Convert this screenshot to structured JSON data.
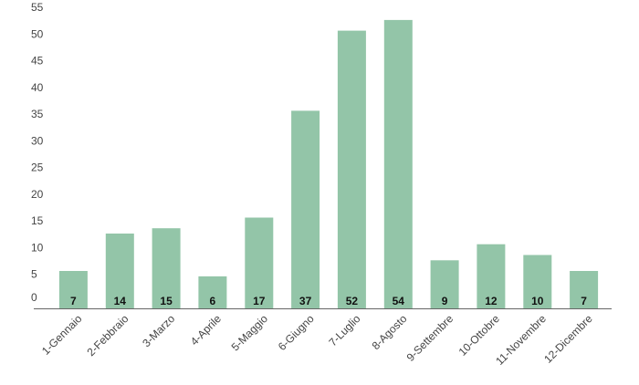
{
  "chart_data": {
    "type": "bar",
    "categories": [
      "1-Gennaio",
      "2-Febbraio",
      "3-Marzo",
      "4-Aprile",
      "5-Maggio",
      "6-Giugno",
      "7-Luglio",
      "8-Agosto",
      "9-Settembre",
      "10-Ottobre",
      "11-Novembre",
      "12-Dicembre"
    ],
    "values": [
      7,
      14,
      15,
      6,
      17,
      37,
      52,
      54,
      9,
      12,
      10,
      7
    ],
    "yticks": [
      0,
      5,
      10,
      15,
      20,
      25,
      30,
      35,
      40,
      45,
      50,
      55
    ],
    "ylim": [
      0,
      55
    ],
    "grid": false,
    "legend": "none",
    "bar_color": "#93c5a8",
    "axis_color": "#666666"
  }
}
